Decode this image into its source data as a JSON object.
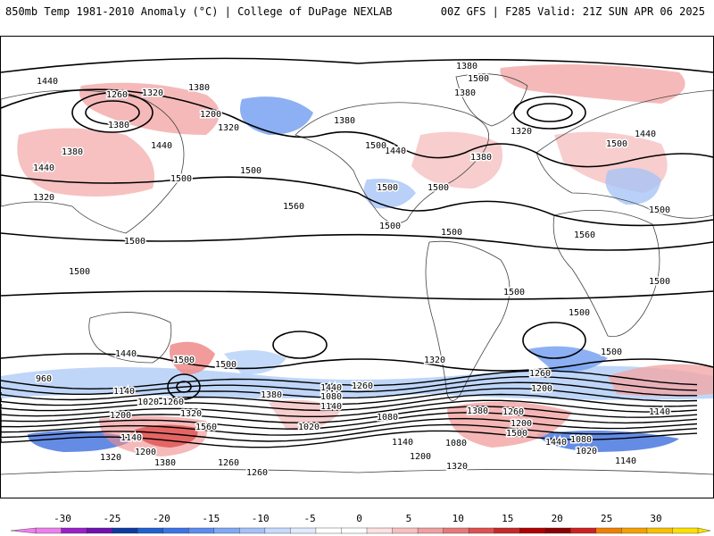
{
  "header": {
    "title_left": "850mb Temp 1981-2010 Anomaly (°C) | College of DuPage NEXLAB",
    "title_right": "00Z GFS | F285 Valid: 21Z SUN APR 06 2025"
  },
  "map": {
    "projection": "global cylindrical",
    "contour_field": "geopotential height (m)",
    "contour_labels": [
      "1440",
      "1260",
      "1320",
      "1380",
      "1200",
      "1380",
      "1320",
      "1380",
      "1440",
      "1500",
      "1500",
      "1560",
      "1440",
      "1380",
      "1320",
      "1440",
      "1500",
      "1380",
      "1500",
      "1380",
      "1380",
      "1320",
      "1500",
      "1440",
      "1500",
      "1500",
      "1500",
      "1500",
      "1500",
      "1500",
      "1500",
      "1500",
      "1500",
      "1500",
      "1500",
      "1560",
      "1440",
      "1500",
      "1500",
      "1380",
      "1320",
      "1260",
      "1200",
      "960",
      "1140",
      "1020",
      "1260",
      "1200",
      "1320",
      "1560",
      "1140",
      "1320",
      "1200",
      "1380",
      "1440",
      "1260",
      "1080",
      "1140",
      "1080",
      "1020",
      "1080",
      "1140",
      "1200",
      "1320",
      "1380",
      "1260",
      "1200",
      "1500",
      "1440",
      "1080",
      "1020",
      "1140",
      "1140",
      "1260",
      "1260"
    ]
  },
  "colorbar": {
    "ticks": [
      "-30",
      "-25",
      "-20",
      "-15",
      "-10",
      "-5",
      "0",
      "5",
      "10",
      "15",
      "20",
      "25",
      "30"
    ],
    "colors": [
      "#ee80ee",
      "#9a20c8",
      "#7010b0",
      "#0d3aa0",
      "#2060d0",
      "#3c74e6",
      "#5c8cf0",
      "#80a8f4",
      "#a4c2f8",
      "#c8dafc",
      "#e0ecfe",
      "#ffffff",
      "#ffffff",
      "#fde0e0",
      "#f8c0c0",
      "#f0a0a0",
      "#e87878",
      "#e05050",
      "#c82828",
      "#b00000",
      "#8c0000",
      "#d02020",
      "#f08000",
      "#f4a000",
      "#f8c000",
      "#fde000"
    ]
  }
}
